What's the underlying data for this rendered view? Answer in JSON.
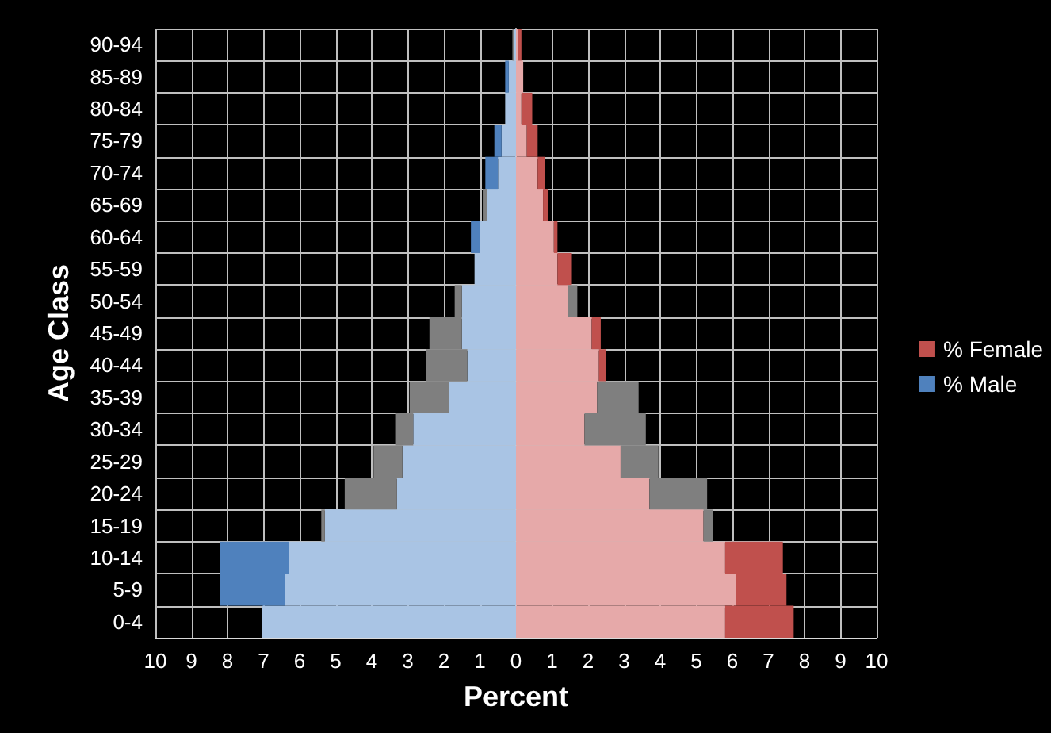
{
  "chart_data": {
    "type": "bar",
    "orientation": "horizontal",
    "stacked": true,
    "xlabel": "Percent",
    "ylabel": "Age Class",
    "categories": [
      "90-94",
      "85-89",
      "80-84",
      "75-79",
      "70-74",
      "65-69",
      "60-64",
      "55-59",
      "50-54",
      "45-49",
      "40-44",
      "35-39",
      "30-34",
      "25-29",
      "20-24",
      "15-19",
      "10-14",
      "5-9",
      "0-4"
    ],
    "series": [
      {
        "color": "#a9c4e4",
        "values": [
          -0.05,
          -0.2,
          -0.3,
          -0.4,
          -0.5,
          -0.8,
          -1.0,
          -1.15,
          -1.5,
          -1.5,
          -1.35,
          -1.85,
          -2.85,
          -3.15,
          -3.3,
          -5.3,
          -6.3,
          -6.4,
          -7.05
        ]
      },
      {
        "name": "% Male",
        "color": "#4f81bd",
        "colors": [
          "#7f7f7f",
          "#4f81bd",
          "#4f81bd",
          "#4f81bd",
          "#4f81bd",
          "#7f7f7f",
          "#4f81bd",
          "#4f81bd",
          "#7f7f7f",
          "#7f7f7f",
          "#7f7f7f",
          "#7f7f7f",
          "#7f7f7f",
          "#7f7f7f",
          "#7f7f7f",
          "#7f7f7f",
          "#4f81bd",
          "#4f81bd",
          "#4f81bd"
        ],
        "values": [
          -0.05,
          -0.1,
          null,
          -0.2,
          -0.35,
          -0.1,
          -0.25,
          null,
          -0.2,
          -0.9,
          -1.15,
          -1.1,
          -0.5,
          -0.8,
          -1.45,
          -0.1,
          -1.9,
          -1.8,
          null
        ]
      },
      {
        "color": "#e6a9a9",
        "values": [
          0.05,
          0.2,
          0.15,
          0.3,
          0.6,
          0.75,
          1.05,
          1.15,
          1.45,
          2.1,
          2.3,
          2.25,
          1.9,
          2.9,
          3.7,
          5.2,
          5.8,
          6.1,
          5.8
        ]
      },
      {
        "name": "% Female",
        "color": "#c0504d",
        "colors": [
          "#c0504d",
          "#c0504d",
          "#c0504d",
          "#c0504d",
          "#c0504d",
          "#c0504d",
          "#c0504d",
          "#c0504d",
          "#7f7f7f",
          "#c0504d",
          "#c0504d",
          "#7f7f7f",
          "#7f7f7f",
          "#7f7f7f",
          "#7f7f7f",
          "#7f7f7f",
          "#c0504d",
          "#c0504d",
          "#c0504d"
        ],
        "values": [
          0.1,
          null,
          0.3,
          0.3,
          0.2,
          0.15,
          0.1,
          0.4,
          0.25,
          0.25,
          0.2,
          1.15,
          1.7,
          1.05,
          1.6,
          0.25,
          1.6,
          1.4,
          1.9
        ]
      }
    ],
    "xlim": [
      -10,
      10
    ],
    "xticks": [
      {
        "value": -10,
        "label": "10"
      },
      {
        "value": -9,
        "label": "9"
      },
      {
        "value": -8,
        "label": "8"
      },
      {
        "value": -7,
        "label": "7"
      },
      {
        "value": -6,
        "label": "6"
      },
      {
        "value": -5,
        "label": "5"
      },
      {
        "value": -4,
        "label": "4"
      },
      {
        "value": -3,
        "label": "3"
      },
      {
        "value": -2,
        "label": "2"
      },
      {
        "value": -1,
        "label": "1"
      },
      0,
      1,
      2,
      3,
      4,
      5,
      6,
      7,
      8,
      9,
      10
    ],
    "grid": true,
    "legend": "right"
  }
}
